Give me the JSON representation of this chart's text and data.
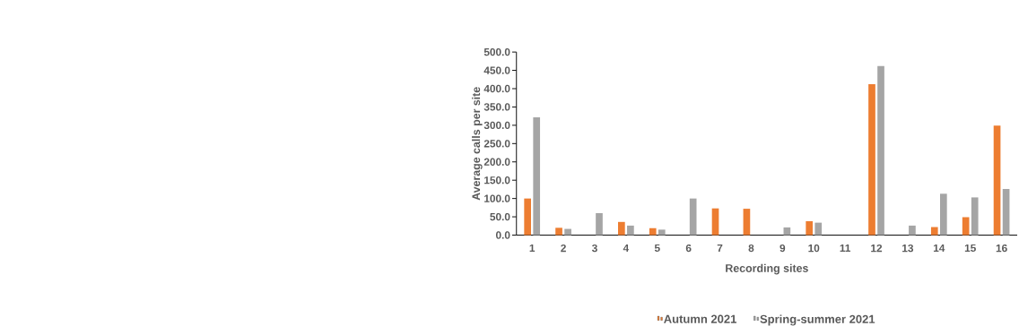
{
  "chart_data": {
    "type": "bar",
    "xlabel": "Recording sites",
    "ylabel": "Average calls per site",
    "categories": [
      "1",
      "2",
      "3",
      "4",
      "5",
      "6",
      "7",
      "8",
      "9",
      "10",
      "11",
      "12",
      "13",
      "14",
      "15",
      "16"
    ],
    "series": [
      {
        "name": "Autumn 2021",
        "color": "#ed7d31",
        "values": [
          100,
          20,
          0,
          36,
          19,
          0,
          73,
          72,
          0,
          38,
          0,
          412,
          0,
          22,
          49,
          299
        ]
      },
      {
        "name": "Spring-summer 2021",
        "color": "#a5a5a5",
        "values": [
          322,
          17,
          60,
          26,
          15,
          100,
          0,
          0,
          21,
          34,
          0,
          462,
          26,
          113,
          103,
          126
        ]
      }
    ],
    "ylim": [
      0,
      500
    ],
    "yticks": [
      {
        "value": 0,
        "label": "0.0"
      },
      {
        "value": 50,
        "label": "50.0"
      },
      {
        "value": 100,
        "label": "100.0"
      },
      {
        "value": 150,
        "label": "150.0"
      },
      {
        "value": 200,
        "label": "200.0"
      },
      {
        "value": 250,
        "label": "250.0"
      },
      {
        "value": 300,
        "label": "300.0"
      },
      {
        "value": 350,
        "label": "350.0"
      },
      {
        "value": 400,
        "label": "400.0"
      },
      {
        "value": 450,
        "label": "450.0"
      },
      {
        "value": 500,
        "label": "500.0"
      }
    ],
    "grid": false,
    "legend": "bottom"
  }
}
